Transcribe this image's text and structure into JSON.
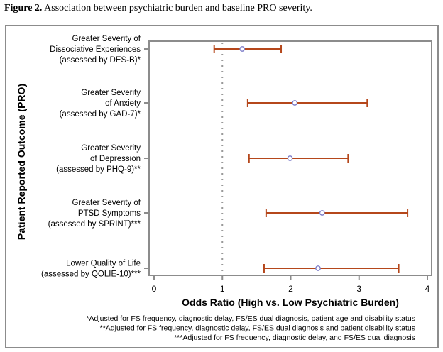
{
  "caption": {
    "label": "Figure 2.",
    "text": " Association between psychiatric burden and baseline PRO severity."
  },
  "chart_data": {
    "type": "forest",
    "title": "",
    "xlabel": "Odds Ratio (High vs. Low Psychiatric Burden)",
    "ylabel": "Patient Reported Outcome (PRO)",
    "xlim": [
      0,
      4
    ],
    "xticks": [
      0,
      1,
      2,
      3,
      4
    ],
    "reference_line": 1,
    "grid": false,
    "colors": {
      "ci": "#b5471b",
      "point": "#7b7bc8",
      "axis": "#8c8c8c",
      "refline": "#999999"
    },
    "rows": [
      {
        "label_lines": [
          "Greater Severity of",
          "Dissociative Experiences",
          "(assessed by DES-B)*"
        ],
        "or": 1.29,
        "lower": 0.88,
        "upper": 1.86
      },
      {
        "label_lines": [
          "Greater Severity",
          "of Anxiety",
          "(assessed by GAD-7)*"
        ],
        "or": 2.06,
        "lower": 1.37,
        "upper": 3.12
      },
      {
        "label_lines": [
          "Greater Severity",
          "of Depression",
          "(assessed by PHQ-9)**"
        ],
        "or": 1.99,
        "lower": 1.39,
        "upper": 2.84
      },
      {
        "label_lines": [
          "Greater Severity of",
          "PTSD Symptoms",
          "(assessed by SPRINT)***"
        ],
        "or": 2.46,
        "lower": 1.64,
        "upper": 3.71
      },
      {
        "label_lines": [
          "Lower Quality of Life",
          "(assessed by QOLIE-10)***"
        ],
        "or": 2.4,
        "lower": 1.61,
        "upper": 3.58
      }
    ],
    "footnotes": [
      "*Adjusted for FS frequency, diagnostic delay, FS/ES dual diagnosis, patient age and disability status",
      "**Adjusted for FS frequency, diagnostic delay, FS/ES dual diagnosis and patient disability status",
      "***Adjusted for FS frequency, diagnostic delay, and FS/ES dual diagnosis"
    ]
  }
}
